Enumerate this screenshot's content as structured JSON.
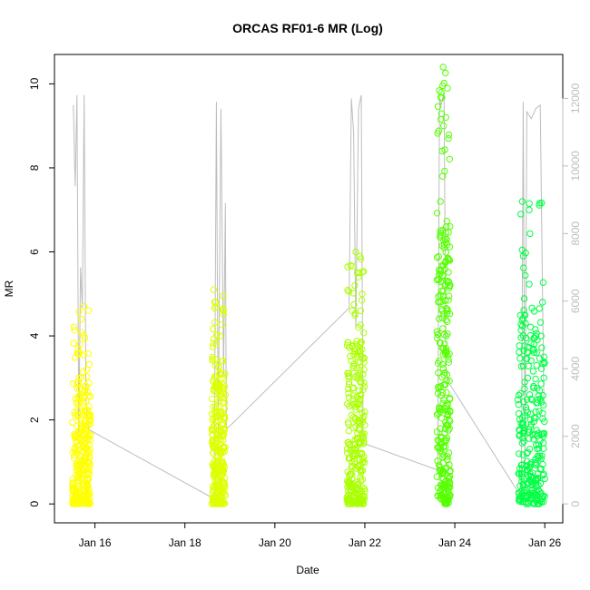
{
  "chart_data": {
    "type": "scatter",
    "title": "ORCAS RF01-6 MR (Log)",
    "xlabel": "Date",
    "ylabel": "MR",
    "x_ticks": [
      "Jan 16",
      "Jan 18",
      "Jan 20",
      "Jan 22",
      "Jan 24",
      "Jan 26"
    ],
    "x_tick_values": [
      16,
      18,
      20,
      22,
      24,
      26
    ],
    "xlim": [
      15.1,
      26.4
    ],
    "y_ticks": [
      "0",
      "2",
      "4",
      "6",
      "8",
      "10"
    ],
    "y_tick_values": [
      0,
      2,
      4,
      6,
      8,
      10
    ],
    "ylim": [
      -0.45,
      10.7
    ],
    "y2_ticks": [
      "0",
      "2000",
      "4000",
      "6000",
      "8000",
      "10000",
      "12000"
    ],
    "y2_tick_values": [
      0,
      2000,
      4000,
      6000,
      8000,
      10000,
      12000
    ],
    "y2lim": [
      -560,
      13300
    ],
    "series": [
      {
        "color": "#ffff00",
        "x_range": [
          15.5,
          15.9
        ],
        "y_range": [
          0.0,
          4.7
        ],
        "points": [
          [
            15.52,
            0.05
          ],
          [
            15.58,
            0.3
          ],
          [
            15.6,
            1.2
          ],
          [
            15.62,
            2.1
          ],
          [
            15.64,
            3.0
          ],
          [
            15.66,
            3.6
          ],
          [
            15.68,
            2.6
          ],
          [
            15.7,
            4.4
          ],
          [
            15.72,
            1.8
          ],
          [
            15.74,
            0.8
          ],
          [
            15.76,
            4.7
          ],
          [
            15.78,
            2.2
          ],
          [
            15.8,
            1.5
          ],
          [
            15.82,
            3.2
          ],
          [
            15.84,
            0.4
          ],
          [
            15.86,
            4.6
          ],
          [
            15.88,
            0.1
          ],
          [
            15.9,
            1.9
          ],
          [
            15.55,
            0.05
          ],
          [
            15.63,
            0.5
          ],
          [
            15.69,
            1.0
          ],
          [
            15.75,
            0.2
          ],
          [
            15.81,
            2.8
          ],
          [
            15.87,
            0.7
          ]
        ]
      },
      {
        "color": "#ddff00",
        "x_range": [
          18.6,
          18.9
        ],
        "y_range": [
          0.0,
          5.1
        ],
        "points": [
          [
            18.62,
            0.1
          ],
          [
            18.64,
            5.1
          ],
          [
            18.66,
            4.8
          ],
          [
            18.68,
            2.8
          ],
          [
            18.7,
            3.8
          ],
          [
            18.72,
            1.5
          ],
          [
            18.74,
            0.6
          ],
          [
            18.76,
            2.3
          ],
          [
            18.78,
            4.0
          ],
          [
            18.8,
            1.2
          ],
          [
            18.82,
            3.4
          ],
          [
            18.84,
            0.3
          ],
          [
            18.86,
            4.6
          ],
          [
            18.88,
            1.8
          ],
          [
            18.9,
            2.6
          ],
          [
            18.65,
            0.2
          ],
          [
            18.73,
            1.0
          ],
          [
            18.81,
            0.05
          ],
          [
            18.87,
            3.0
          ]
        ]
      },
      {
        "color": "#aaff00",
        "x_range": [
          21.6,
          22.0
        ],
        "y_range": [
          0.0,
          6.05
        ],
        "points": [
          [
            21.62,
            0.1
          ],
          [
            21.64,
            1.9
          ],
          [
            21.66,
            1.4
          ],
          [
            21.68,
            0.5
          ],
          [
            21.7,
            3.4
          ],
          [
            21.72,
            4.6
          ],
          [
            21.74,
            2.5
          ],
          [
            21.76,
            0.2
          ],
          [
            21.78,
            5.2
          ],
          [
            21.8,
            6.0
          ],
          [
            21.82,
            3.8
          ],
          [
            21.84,
            1.2
          ],
          [
            21.86,
            4.2
          ],
          [
            21.88,
            5.5
          ],
          [
            21.9,
            2.9
          ],
          [
            21.92,
            0.8
          ],
          [
            21.94,
            5.0
          ],
          [
            21.96,
            1.6
          ],
          [
            21.98,
            3.2
          ],
          [
            22.0,
            0.3
          ],
          [
            21.71,
            1.0
          ],
          [
            21.83,
            0.05
          ],
          [
            21.91,
            2.0
          ]
        ]
      },
      {
        "color": "#55ff00",
        "x_range": [
          23.6,
          23.9
        ],
        "y_range": [
          0.0,
          10.4
        ],
        "points": [
          [
            23.62,
            0.2
          ],
          [
            23.64,
            1.5
          ],
          [
            23.66,
            4.8
          ],
          [
            23.68,
            7.2
          ],
          [
            23.7,
            9.8
          ],
          [
            23.72,
            8.4
          ],
          [
            23.74,
            10.4
          ],
          [
            23.76,
            6.1
          ],
          [
            23.78,
            5.2
          ],
          [
            23.8,
            9.2
          ],
          [
            23.82,
            3.6
          ],
          [
            23.84,
            2.2
          ],
          [
            23.86,
            0.6
          ],
          [
            23.88,
            1.8
          ],
          [
            23.73,
            7.8
          ],
          [
            23.75,
            9.0
          ],
          [
            23.79,
            0.1
          ],
          [
            23.81,
            4.0
          ],
          [
            23.69,
            2.8
          ],
          [
            23.85,
            0.3
          ]
        ]
      },
      {
        "color": "#00ff44",
        "x_range": [
          25.4,
          26.0
        ],
        "y_range": [
          0.0,
          7.2
        ],
        "points": [
          [
            25.45,
            0.1
          ],
          [
            25.5,
            7.2
          ],
          [
            25.52,
            5.9
          ],
          [
            25.55,
            4.5
          ],
          [
            25.58,
            2.3
          ],
          [
            25.6,
            1.2
          ],
          [
            25.62,
            3.6
          ],
          [
            25.65,
            0.5
          ],
          [
            25.7,
            1.9
          ],
          [
            25.75,
            2.8
          ],
          [
            25.78,
            0.2
          ],
          [
            25.82,
            3.3
          ],
          [
            25.86,
            1.1
          ],
          [
            25.9,
            2.5
          ],
          [
            25.92,
            4.0
          ],
          [
            25.95,
            4.8
          ],
          [
            25.98,
            3.0
          ],
          [
            26.0,
            0.6
          ],
          [
            25.57,
            0.05
          ],
          [
            25.68,
            2.0
          ],
          [
            25.88,
            0.3
          ]
        ]
      }
    ],
    "line_right_axis": {
      "color": "#bdbdbd",
      "points": [
        [
          15.52,
          11800
        ],
        [
          15.56,
          9400
        ],
        [
          15.6,
          12100
        ],
        [
          15.64,
          2000
        ],
        [
          15.68,
          7000
        ],
        [
          15.72,
          5800
        ],
        [
          15.76,
          12100
        ],
        [
          15.8,
          3000
        ],
        [
          15.86,
          2200
        ],
        [
          18.65,
          150
        ],
        [
          18.7,
          11900
        ],
        [
          18.74,
          2000
        ],
        [
          18.8,
          11700
        ],
        [
          18.86,
          3800
        ],
        [
          18.9,
          8900
        ],
        [
          18.92,
          2200
        ],
        [
          21.65,
          5800
        ],
        [
          21.7,
          12000
        ],
        [
          21.75,
          11000
        ],
        [
          21.8,
          5200
        ],
        [
          21.86,
          11700
        ],
        [
          21.92,
          12100
        ],
        [
          21.96,
          1800
        ],
        [
          23.62,
          1000
        ],
        [
          23.66,
          12000
        ],
        [
          23.7,
          11800
        ],
        [
          23.76,
          12200
        ],
        [
          23.8,
          4000
        ],
        [
          23.86,
          3600
        ],
        [
          25.48,
          200
        ],
        [
          25.52,
          11900
        ],
        [
          25.56,
          1100
        ],
        [
          25.6,
          11600
        ],
        [
          25.7,
          11400
        ],
        [
          25.8,
          11700
        ],
        [
          25.9,
          11800
        ],
        [
          25.98,
          2900
        ]
      ]
    },
    "grid": false,
    "legend": "none"
  }
}
